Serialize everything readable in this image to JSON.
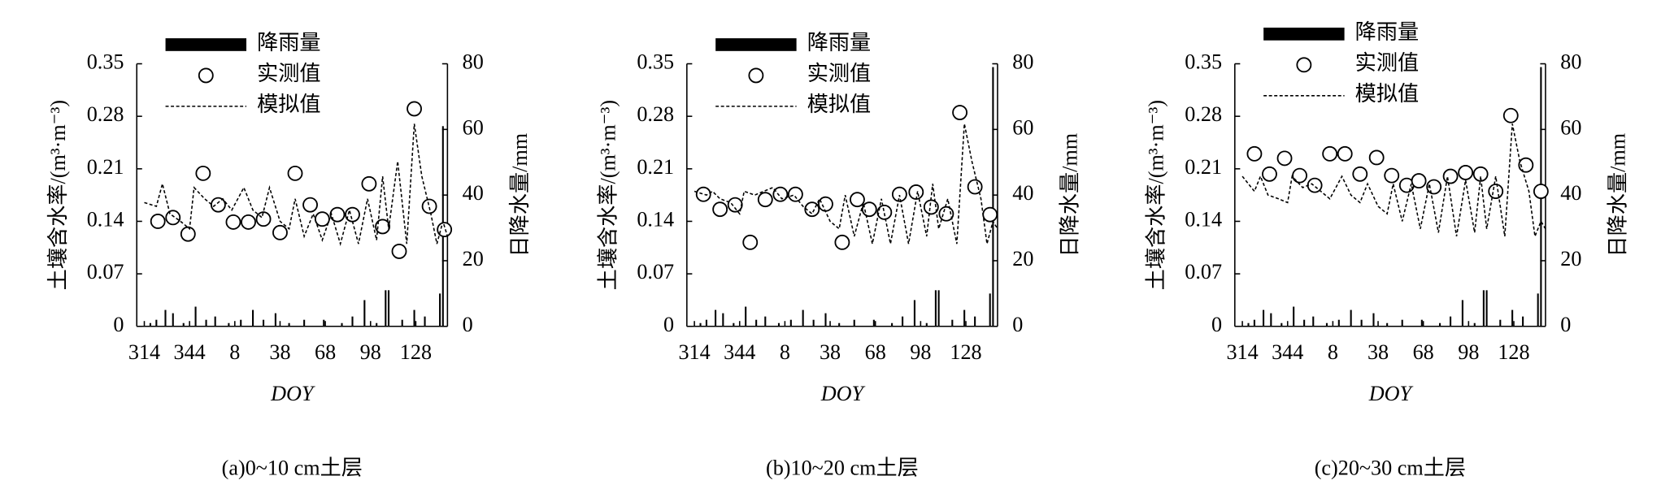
{
  "chart_data": [
    {
      "type": "combo",
      "caption": "(a)0~10 cm土层",
      "xlabel": "DOY",
      "ylabel": "土壤含水率/(m³·m⁻³)",
      "y2label": "日降水量/mm",
      "legend": "upper left",
      "xlim": [
        309,
        515
      ],
      "xticks": [
        314,
        344,
        {
          "value": 374,
          "label": "8"
        },
        {
          "value": 404,
          "label": "38"
        },
        {
          "value": 434,
          "label": "68"
        },
        {
          "value": 464,
          "label": "98"
        },
        {
          "value": 494,
          "label": "128"
        }
      ],
      "ylim": [
        0,
        0.35
      ],
      "yticks": [
        0,
        0.07,
        0.14,
        0.21,
        0.28,
        0.35
      ],
      "y2lim": [
        0,
        80
      ],
      "y2ticks": [
        0,
        20,
        40,
        60,
        80
      ],
      "series": [
        {
          "name": "降雨量",
          "type": "bar",
          "axis": "y2",
          "color": "#000000",
          "x": [
            318,
            322,
            328,
            333,
            340,
            348,
            355,
            361,
            370,
            378,
            386,
            393,
            401,
            410,
            420,
            433,
            445,
            452,
            460,
            468,
            474,
            476,
            485,
            493,
            500,
            510,
            512
          ],
          "values": [
            1,
            2,
            5,
            4,
            1,
            6,
            2,
            3,
            1,
            2,
            5,
            2,
            4,
            1,
            2,
            2,
            1,
            3,
            8,
            1,
            11,
            11,
            2,
            5,
            3,
            10,
            61
          ]
        },
        {
          "name": "实测值",
          "type": "scatter",
          "color": "#000000",
          "x": [
            323,
            333,
            343,
            353,
            363,
            373,
            383,
            393,
            404,
            414,
            424,
            432,
            442,
            452,
            463,
            472,
            483,
            493,
            503,
            513
          ],
          "values": [
            0.14,
            0.145,
            0.123,
            0.204,
            0.162,
            0.139,
            0.139,
            0.143,
            0.125,
            0.204,
            0.162,
            0.143,
            0.149,
            0.149,
            0.19,
            0.133,
            0.1,
            0.29,
            0.16,
            0.129
          ]
        },
        {
          "name": "模拟值",
          "type": "line",
          "color": "#000000",
          "x": [
            314,
            322,
            326,
            331,
            338,
            344,
            347,
            354,
            360,
            366,
            372,
            380,
            386,
            392,
            397,
            404,
            410,
            414,
            420,
            426,
            432,
            438,
            444,
            450,
            456,
            462,
            468,
            472,
            476,
            482,
            488,
            493,
            498,
            504,
            508,
            512,
            515
          ],
          "values": [
            0.165,
            0.16,
            0.19,
            0.15,
            0.14,
            0.13,
            0.185,
            0.17,
            0.16,
            0.17,
            0.155,
            0.185,
            0.155,
            0.145,
            0.185,
            0.14,
            0.13,
            0.17,
            0.12,
            0.15,
            0.115,
            0.15,
            0.11,
            0.155,
            0.11,
            0.17,
            0.115,
            0.2,
            0.13,
            0.22,
            0.11,
            0.27,
            0.2,
            0.15,
            0.11,
            0.14,
            0.12
          ]
        }
      ]
    },
    {
      "type": "combo",
      "caption": "(b)10~20 cm土层",
      "xlabel": "DOY",
      "ylabel": "土壤含水率/(m³·m⁻³)",
      "y2label": "日降水量/mm",
      "legend": "upper left",
      "xlim": [
        309,
        515
      ],
      "xticks": [
        314,
        344,
        {
          "value": 374,
          "label": "8"
        },
        {
          "value": 404,
          "label": "38"
        },
        {
          "value": 434,
          "label": "68"
        },
        {
          "value": 464,
          "label": "98"
        },
        {
          "value": 494,
          "label": "128"
        }
      ],
      "ylim": [
        0,
        0.35
      ],
      "yticks": [
        0,
        0.07,
        0.14,
        0.21,
        0.28,
        0.35
      ],
      "y2lim": [
        0,
        80
      ],
      "y2ticks": [
        0,
        20,
        40,
        60,
        80
      ],
      "series": [
        {
          "name": "降雨量",
          "type": "bar",
          "axis": "y2",
          "color": "#000000",
          "x": [
            318,
            322,
            328,
            333,
            340,
            348,
            355,
            361,
            370,
            378,
            386,
            393,
            401,
            410,
            420,
            433,
            445,
            452,
            460,
            468,
            474,
            476,
            485,
            493,
            500,
            510,
            512
          ],
          "values": [
            1,
            2,
            5,
            4,
            1,
            6,
            2,
            3,
            1,
            2,
            5,
            2,
            4,
            1,
            2,
            2,
            1,
            3,
            8,
            1,
            11,
            11,
            2,
            5,
            3,
            10,
            79
          ]
        },
        {
          "name": "实测值",
          "type": "scatter",
          "color": "#000000",
          "x": [
            320,
            331,
            341,
            351,
            361,
            371,
            381,
            392,
            401,
            412,
            422,
            430,
            440,
            450,
            461,
            471,
            481,
            490,
            500,
            510
          ],
          "values": [
            0.176,
            0.156,
            0.162,
            0.112,
            0.169,
            0.176,
            0.176,
            0.156,
            0.163,
            0.112,
            0.169,
            0.156,
            0.152,
            0.176,
            0.179,
            0.159,
            0.15,
            0.285,
            0.186,
            0.149
          ]
        },
        {
          "name": "模拟值",
          "type": "line",
          "color": "#000000",
          "x": [
            314,
            322,
            326,
            331,
            338,
            344,
            347,
            354,
            360,
            366,
            372,
            380,
            386,
            392,
            397,
            404,
            410,
            414,
            420,
            426,
            432,
            438,
            444,
            450,
            456,
            462,
            468,
            472,
            476,
            482,
            488,
            493,
            498,
            504,
            508,
            512,
            515
          ],
          "values": [
            0.18,
            0.175,
            0.18,
            0.17,
            0.165,
            0.15,
            0.18,
            0.175,
            0.18,
            0.185,
            0.17,
            0.175,
            0.16,
            0.15,
            0.17,
            0.14,
            0.13,
            0.175,
            0.12,
            0.165,
            0.11,
            0.17,
            0.11,
            0.175,
            0.11,
            0.18,
            0.12,
            0.19,
            0.13,
            0.17,
            0.11,
            0.27,
            0.22,
            0.17,
            0.11,
            0.14,
            0.13
          ]
        }
      ]
    },
    {
      "type": "combo",
      "caption": "(c)20~30 cm土层",
      "xlabel": "DOY",
      "ylabel": "土壤含水率/(m³·m⁻³)",
      "y2label": "日降水量/mm",
      "legend": "upper left",
      "xlim": [
        309,
        515
      ],
      "xticks": [
        314,
        344,
        {
          "value": 374,
          "label": "8"
        },
        {
          "value": 404,
          "label": "38"
        },
        {
          "value": 434,
          "label": "68"
        },
        {
          "value": 464,
          "label": "98"
        },
        {
          "value": 494,
          "label": "128"
        }
      ],
      "ylim": [
        0,
        0.35
      ],
      "yticks": [
        0,
        0.07,
        0.14,
        0.21,
        0.28,
        0.35
      ],
      "y2lim": [
        0,
        80
      ],
      "y2ticks": [
        0,
        20,
        40,
        60,
        80
      ],
      "series": [
        {
          "name": "降雨量",
          "type": "bar",
          "axis": "y2",
          "color": "#000000",
          "x": [
            318,
            322,
            328,
            333,
            340,
            348,
            355,
            361,
            370,
            378,
            386,
            393,
            401,
            410,
            420,
            433,
            445,
            452,
            460,
            468,
            474,
            476,
            485,
            493,
            500,
            510,
            512
          ],
          "values": [
            1,
            2,
            5,
            4,
            1,
            6,
            2,
            3,
            1,
            2,
            5,
            2,
            4,
            1,
            2,
            2,
            1,
            3,
            8,
            1,
            11,
            11,
            2,
            5,
            3,
            10,
            79
          ]
        },
        {
          "name": "实测值",
          "type": "scatter",
          "color": "#000000",
          "x": [
            322,
            332,
            342,
            352,
            362,
            372,
            382,
            392,
            403,
            413,
            423,
            431,
            441,
            452,
            462,
            472,
            482,
            492,
            502,
            512
          ],
          "values": [
            0.23,
            0.203,
            0.224,
            0.201,
            0.188,
            0.23,
            0.23,
            0.203,
            0.225,
            0.201,
            0.188,
            0.194,
            0.186,
            0.2,
            0.205,
            0.203,
            0.18,
            0.281,
            0.215,
            0.18
          ]
        },
        {
          "name": "模拟值",
          "type": "line",
          "color": "#000000",
          "x": [
            314,
            322,
            326,
            331,
            338,
            344,
            347,
            354,
            360,
            366,
            372,
            380,
            386,
            392,
            397,
            404,
            410,
            414,
            420,
            426,
            432,
            438,
            444,
            450,
            456,
            462,
            468,
            472,
            476,
            482,
            488,
            493,
            498,
            504,
            508,
            512,
            515
          ],
          "values": [
            0.2,
            0.18,
            0.2,
            0.175,
            0.17,
            0.165,
            0.2,
            0.185,
            0.19,
            0.18,
            0.17,
            0.2,
            0.175,
            0.165,
            0.19,
            0.16,
            0.15,
            0.19,
            0.14,
            0.19,
            0.13,
            0.19,
            0.125,
            0.2,
            0.12,
            0.195,
            0.125,
            0.2,
            0.13,
            0.2,
            0.12,
            0.27,
            0.22,
            0.18,
            0.12,
            0.14,
            0.13
          ]
        }
      ]
    }
  ]
}
